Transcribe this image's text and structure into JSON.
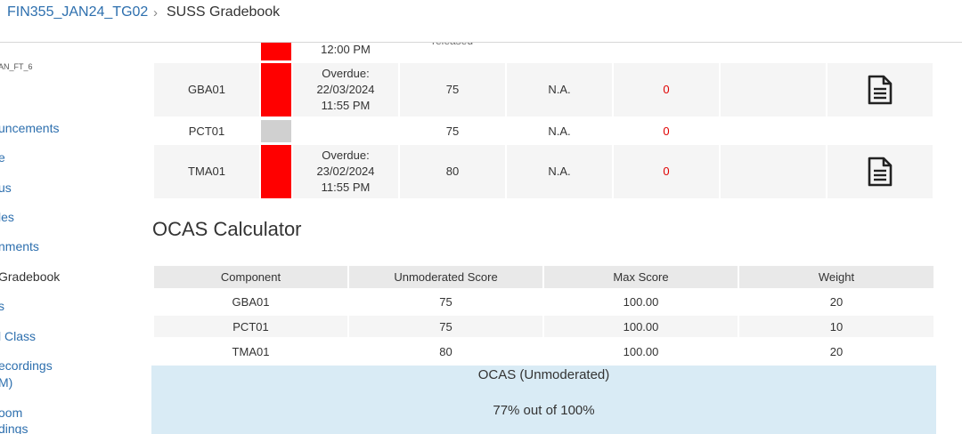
{
  "header": {
    "course": "FIN355_JAN24_TG02",
    "separator": "›",
    "current": "SUSS Gradebook"
  },
  "sidebar": {
    "term": "AN_FT_6",
    "items": [
      {
        "label": "uncements"
      },
      {
        "label": "e"
      },
      {
        "label": "us"
      },
      {
        "label": "les"
      },
      {
        "label": "nments"
      },
      {
        "label": "Gradebook"
      },
      {
        "label": "s"
      },
      {
        "label": "l Class"
      },
      {
        "label": "ecordings"
      },
      {
        "label": "M)"
      },
      {
        "label": "oom"
      },
      {
        "label": "dings"
      }
    ]
  },
  "assignments": {
    "top_partial": {
      "due": "12:00 PM",
      "status_fragment": "released"
    },
    "rows": [
      {
        "name": "GBA01",
        "due_lines": [
          "Overdue:",
          "22/03/2024",
          "11:55 PM"
        ],
        "score": "75",
        "moderated": "N.A.",
        "penalty": "0",
        "has_doc": true,
        "status_color": "#ff0000"
      },
      {
        "name": "PCT01",
        "due_lines": [],
        "score": "75",
        "moderated": "N.A.",
        "penalty": "0",
        "has_doc": false,
        "status_color": "#d0d0d0"
      },
      {
        "name": "TMA01",
        "due_lines": [
          "Overdue:",
          "23/02/2024",
          "11:55 PM"
        ],
        "score": "80",
        "moderated": "N.A.",
        "penalty": "0",
        "has_doc": true,
        "status_color": "#ff0000"
      }
    ]
  },
  "ocas": {
    "title": "OCAS Calculator",
    "headers": [
      "Component",
      "Unmoderated Score",
      "Max Score",
      "Weight"
    ],
    "rows": [
      [
        "GBA01",
        "75",
        "100.00",
        "20"
      ],
      [
        "PCT01",
        "75",
        "100.00",
        "10"
      ],
      [
        "TMA01",
        "80",
        "100.00",
        "20"
      ]
    ],
    "summary_title": "OCAS (Unmoderated)",
    "summary_value": "77% out of 100%"
  },
  "colors": {
    "link": "#2d6fae",
    "overdue": "#ff0000",
    "penalty": "#e00000",
    "summary_bg": "#d9ebf5"
  }
}
